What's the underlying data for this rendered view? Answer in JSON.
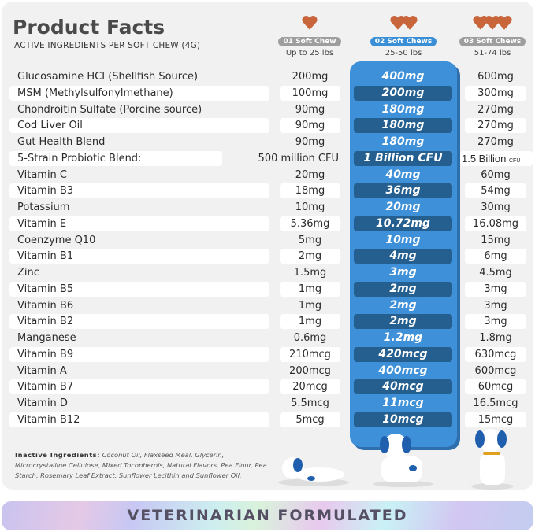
{
  "header": {
    "title": "Product Facts",
    "subtitle": "ACTIVE INGREDIENTS PER SOFT CHEW (4G)"
  },
  "columns": [
    {
      "pill": "01 Soft Chew",
      "weight": "Up to 25 lbs",
      "chews": 1
    },
    {
      "pill": "02 Soft Chews",
      "weight": "25-50 lbs",
      "chews": 2,
      "highlighted": true
    },
    {
      "pill": "03 Soft Chews",
      "weight": "51-74 lbs",
      "chews": 3
    }
  ],
  "rows": [
    {
      "name": "Glucosamine HCI (Shellfish Source)",
      "v1": "200mg",
      "v2": "400mg",
      "v3": "600mg"
    },
    {
      "name": "MSM (Methylsulfonylmethane)",
      "v1": "100mg",
      "v2": "200mg",
      "v3": "300mg"
    },
    {
      "name": "Chondroitin Sulfate (Porcine source)",
      "v1": "90mg",
      "v2": "180mg",
      "v3": "270mg"
    },
    {
      "name": "Cod Liver Oil",
      "v1": "90mg",
      "v2": "180mg",
      "v3": "270mg"
    },
    {
      "name": "Gut Health Blend",
      "v1": "90mg",
      "v2": "180mg",
      "v3": "270mg"
    },
    {
      "name": "5-Strain Probiotic Blend:",
      "v1": "500 million CFU",
      "v2": "1 Billion CFU",
      "v3": "1.5 Billion",
      "v3_unit": "CFU"
    },
    {
      "name": "Vitamin C",
      "v1": "20mg",
      "v2": "40mg",
      "v3": "60mg"
    },
    {
      "name": "Vitamin B3",
      "v1": "18mg",
      "v2": "36mg",
      "v3": "54mg"
    },
    {
      "name": "Potassium",
      "v1": "10mg",
      "v2": "20mg",
      "v3": "30mg"
    },
    {
      "name": "Vitamin E",
      "v1": "5.36mg",
      "v2": "10.72mg",
      "v3": "16.08mg"
    },
    {
      "name": "Coenzyme Q10",
      "v1": "5mg",
      "v2": "10mg",
      "v3": "15mg"
    },
    {
      "name": "Vitamin B1",
      "v1": "2mg",
      "v2": "4mg",
      "v3": "6mg"
    },
    {
      "name": "Zinc",
      "v1": "1.5mg",
      "v2": "3mg",
      "v3": "4.5mg"
    },
    {
      "name": "Vitamin B5",
      "v1": "1mg",
      "v2": "2mg",
      "v3": "3mg"
    },
    {
      "name": "Vitamin B6",
      "v1": "1mg",
      "v2": "2mg",
      "v3": "3mg"
    },
    {
      "name": "Vitamin B2",
      "v1": "1mg",
      "v2": "2mg",
      "v3": "3mg"
    },
    {
      "name": "Manganese",
      "v1": "0.6mg",
      "v2": "1.2mg",
      "v3": "1.8mg"
    },
    {
      "name": "Vitamin B9",
      "v1": "210mcg",
      "v2": "420mcg",
      "v3": "630mcg"
    },
    {
      "name": "Vitamin A",
      "v1": "200mcg",
      "v2": "400mcg",
      "v3": "600mcg"
    },
    {
      "name": "Vitamin B7",
      "v1": "20mcg",
      "v2": "40mcg",
      "v3": "60mcg"
    },
    {
      "name": "Vitamin D",
      "v1": "5.5mcg",
      "v2": "11mcg",
      "v3": "16.5mcg"
    },
    {
      "name": "Vitamin B12",
      "v1": "5mcg",
      "v2": "10mcg",
      "v3": "15mcg"
    }
  ],
  "inactive": {
    "label": "Inactive Ingredients:",
    "text": "Coconut Oil, Flaxseed Meal, Glycerin, Microcrystalline Cellulose, Mixed Tocopherols, Natural Flavors, Pea Flour, Pea Starch, Rosemary Leaf Extract, Sunflower Lecithin and Sunflower Oil."
  },
  "banner": "VETERINARIAN FORMULATED",
  "colors": {
    "highlight": "#3e90d8",
    "highlight_dark": "#255f90",
    "chew": "#c8653a",
    "card": "#f1f1f1"
  }
}
